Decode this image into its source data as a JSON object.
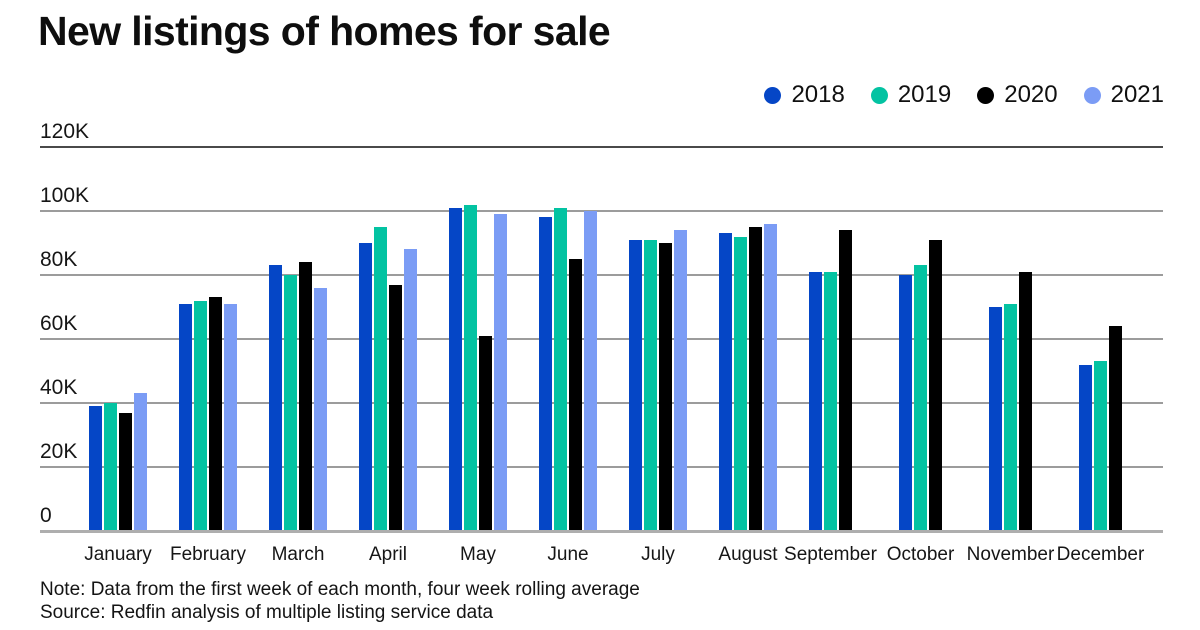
{
  "chart_data": {
    "type": "bar",
    "title": "New listings of homes for sale",
    "categories": [
      "January",
      "February",
      "March",
      "April",
      "May",
      "June",
      "July",
      "August",
      "September",
      "October",
      "November",
      "December"
    ],
    "series": [
      {
        "name": "2018",
        "color": "#0546C6",
        "values": [
          39,
          71,
          83,
          90,
          101,
          98,
          91,
          93,
          81,
          80,
          70,
          52
        ]
      },
      {
        "name": "2019",
        "color": "#03C3A2",
        "values": [
          40,
          72,
          80,
          95,
          102,
          101,
          91,
          92,
          81,
          83,
          71,
          53
        ]
      },
      {
        "name": "2020",
        "color": "#000000",
        "values": [
          37,
          73,
          84,
          77,
          61,
          85,
          90,
          95,
          94,
          91,
          81,
          64
        ]
      },
      {
        "name": "2021",
        "color": "#7B9CF5",
        "values": [
          43,
          71,
          76,
          88,
          99,
          100,
          94,
          96,
          null,
          null,
          null,
          null
        ]
      }
    ],
    "values_unit": "thousands of listings (K)",
    "y_ticks": [
      "120K",
      "100K",
      "80K",
      "60K",
      "40K",
      "20K",
      "0"
    ],
    "y_tick_values": [
      120,
      100,
      80,
      60,
      40,
      20,
      0
    ],
    "ylim": [
      0,
      120
    ],
    "grid": true,
    "legend_position": "top-right"
  },
  "footer": {
    "note": "Note: Data from the first week of each month, four week rolling average",
    "source": "Source: Redfin analysis of multiple listing service data"
  }
}
